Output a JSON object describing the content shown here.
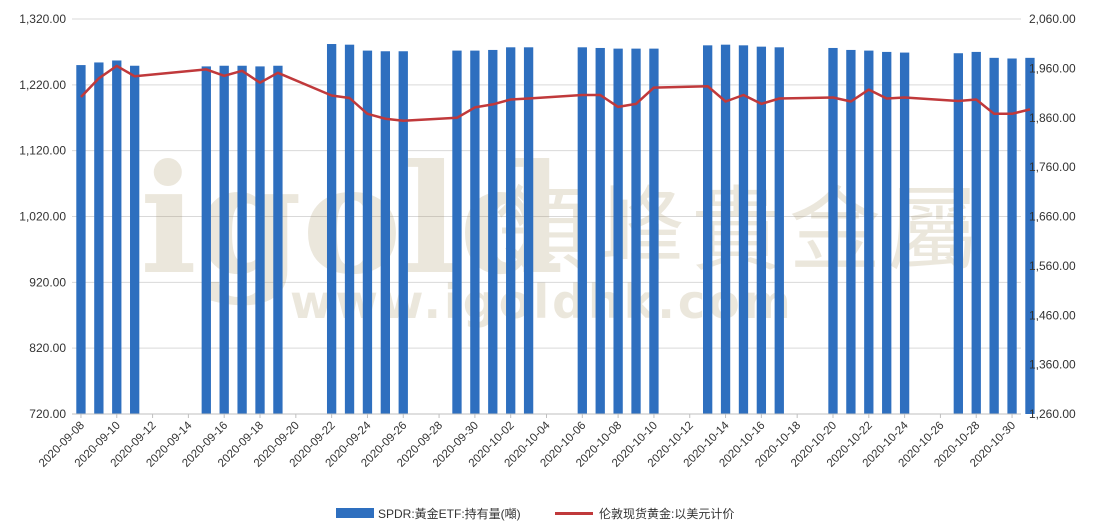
{
  "watermark": {
    "brand": "igold",
    "brand_cn": "領峰貴金屬",
    "url": "www.igoldhk.com"
  },
  "chart_data": {
    "type": "bar+line",
    "left_axis": {
      "ylim": [
        720,
        1320
      ],
      "ticks": [
        "720.00",
        "820.00",
        "920.00",
        "1,020.00",
        "1,120.00",
        "1,220.00",
        "1,320.00"
      ]
    },
    "right_axis": {
      "ylim": [
        1260,
        2060
      ],
      "ticks": [
        "1,260.00",
        "1,360.00",
        "1,460.00",
        "1,560.00",
        "1,660.00",
        "1,760.00",
        "1,860.00",
        "1,960.00",
        "2,060.00"
      ]
    },
    "x_tick_labels": [
      "2020-09-08",
      "2020-09-10",
      "2020-09-12",
      "2020-09-14",
      "2020-09-16",
      "2020-09-18",
      "2020-09-20",
      "2020-09-22",
      "2020-09-24",
      "2020-09-26",
      "2020-09-28",
      "2020-09-30",
      "2020-10-02",
      "2020-10-04",
      "2020-10-06",
      "2020-10-08",
      "2020-10-10",
      "2020-10-12",
      "2020-10-14",
      "2020-10-16",
      "2020-10-18",
      "2020-10-20",
      "2020-10-22",
      "2020-10-24",
      "2020-10-26",
      "2020-10-28",
      "2020-10-30"
    ],
    "first_date": "2020-09-08",
    "days_count": 53,
    "grid": true,
    "legend_position": "bottom-center",
    "series": [
      {
        "name": "SPDR:黃金ETF:持有量(噸)",
        "kind": "bar",
        "axis": "left",
        "color": "#2e6fbf",
        "points": [
          [
            "2020-09-08",
            1250
          ],
          [
            "2020-09-09",
            1254
          ],
          [
            "2020-09-10",
            1257
          ],
          [
            "2020-09-11",
            1249
          ],
          [
            "2020-09-15",
            1248
          ],
          [
            "2020-09-16",
            1249
          ],
          [
            "2020-09-17",
            1249
          ],
          [
            "2020-09-18",
            1248
          ],
          [
            "2020-09-19",
            1249
          ],
          [
            "2020-09-22",
            1282
          ],
          [
            "2020-09-23",
            1281
          ],
          [
            "2020-09-24",
            1272
          ],
          [
            "2020-09-25",
            1271
          ],
          [
            "2020-09-26",
            1271
          ],
          [
            "2020-09-29",
            1272
          ],
          [
            "2020-09-30",
            1272
          ],
          [
            "2020-10-01",
            1273
          ],
          [
            "2020-10-02",
            1277
          ],
          [
            "2020-10-03",
            1277
          ],
          [
            "2020-10-06",
            1277
          ],
          [
            "2020-10-07",
            1276
          ],
          [
            "2020-10-08",
            1275
          ],
          [
            "2020-10-09",
            1275
          ],
          [
            "2020-10-10",
            1275
          ],
          [
            "2020-10-13",
            1280
          ],
          [
            "2020-10-14",
            1281
          ],
          [
            "2020-10-15",
            1280
          ],
          [
            "2020-10-16",
            1278
          ],
          [
            "2020-10-17",
            1277
          ],
          [
            "2020-10-20",
            1276
          ],
          [
            "2020-10-21",
            1273
          ],
          [
            "2020-10-22",
            1272
          ],
          [
            "2020-10-23",
            1270
          ],
          [
            "2020-10-24",
            1269
          ],
          [
            "2020-10-27",
            1268
          ],
          [
            "2020-10-28",
            1270
          ],
          [
            "2020-10-29",
            1261
          ],
          [
            "2020-10-30",
            1260
          ],
          [
            "2020-10-31",
            1261
          ]
        ]
      },
      {
        "name": "伦敦现货黄金:以美元计价",
        "kind": "line",
        "axis": "right",
        "color": "#c0393b",
        "points": [
          [
            "2020-09-08",
            1902
          ],
          [
            "2020-09-09",
            1940
          ],
          [
            "2020-09-10",
            1965
          ],
          [
            "2020-09-11",
            1944
          ],
          [
            "2020-09-15",
            1958
          ],
          [
            "2020-09-16",
            1945
          ],
          [
            "2020-09-17",
            1955
          ],
          [
            "2020-09-18",
            1931
          ],
          [
            "2020-09-19",
            1951
          ],
          [
            "2020-09-22",
            1905
          ],
          [
            "2020-09-23",
            1900
          ],
          [
            "2020-09-24",
            1868
          ],
          [
            "2020-09-25",
            1858
          ],
          [
            "2020-09-26",
            1854
          ],
          [
            "2020-09-29",
            1860
          ],
          [
            "2020-09-30",
            1881
          ],
          [
            "2020-10-01",
            1887
          ],
          [
            "2020-10-02",
            1897
          ],
          [
            "2020-10-03",
            1899
          ],
          [
            "2020-10-06",
            1906
          ],
          [
            "2020-10-07",
            1906
          ],
          [
            "2020-10-08",
            1882
          ],
          [
            "2020-10-09",
            1888
          ],
          [
            "2020-10-10",
            1921
          ],
          [
            "2020-10-13",
            1924
          ],
          [
            "2020-10-14",
            1893
          ],
          [
            "2020-10-15",
            1906
          ],
          [
            "2020-10-16",
            1888
          ],
          [
            "2020-10-17",
            1899
          ],
          [
            "2020-10-20",
            1901
          ],
          [
            "2020-10-21",
            1893
          ],
          [
            "2020-10-22",
            1917
          ],
          [
            "2020-10-23",
            1899
          ],
          [
            "2020-10-24",
            1901
          ],
          [
            "2020-10-27",
            1894
          ],
          [
            "2020-10-28",
            1897
          ],
          [
            "2020-10-29",
            1868
          ],
          [
            "2020-10-30",
            1868
          ],
          [
            "2020-10-31",
            1877
          ]
        ]
      }
    ]
  }
}
